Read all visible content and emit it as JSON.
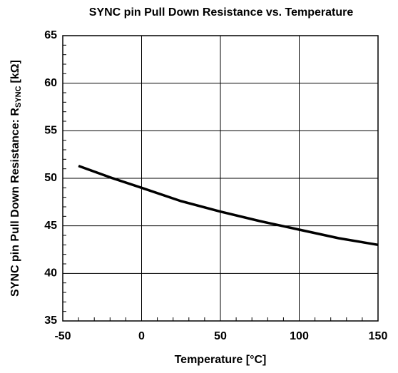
{
  "chart_data": {
    "type": "line",
    "title": "SYNC pin Pull Down Resistance vs. Temperature",
    "xlabel": "Temperature [°C]",
    "ylabel": "SYNC pin Pull Down Resistance: R",
    "ylabel_subscript": "SYNC",
    "ylabel_unit": "[kΩ]",
    "x": [
      -40,
      -20,
      0,
      25,
      50,
      75,
      100,
      125,
      150
    ],
    "series": [
      {
        "name": "RSYNC",
        "color": "#000000",
        "values": [
          51.3,
          50.1,
          49.0,
          47.6,
          46.5,
          45.5,
          44.6,
          43.7,
          43.0
        ]
      }
    ],
    "xlim": [
      -50,
      150
    ],
    "xticks": [
      -50,
      0,
      50,
      100,
      150
    ],
    "ylim": [
      35,
      65
    ],
    "yticks": [
      35,
      40,
      45,
      50,
      55,
      60,
      65
    ],
    "grid": true
  }
}
